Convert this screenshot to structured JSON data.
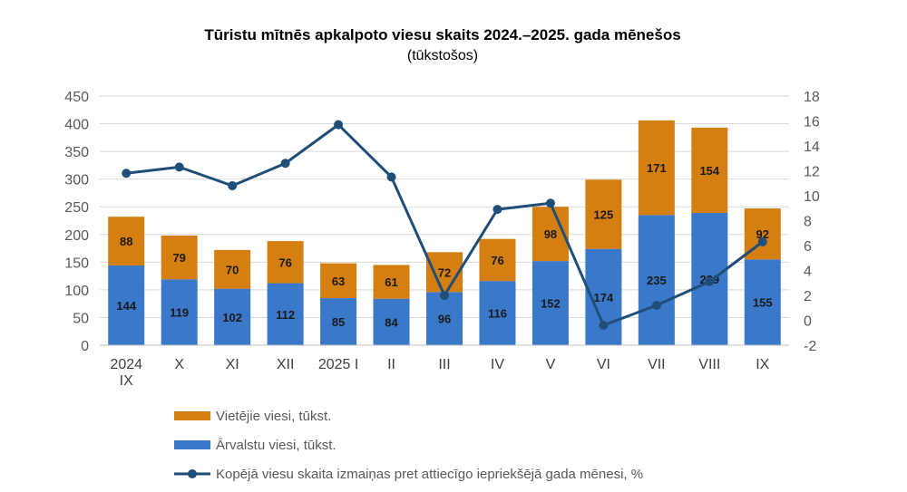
{
  "chart_data": {
    "type": "bar",
    "stacked": true,
    "title": "Tūristu mītnēs apkalpoto viesu skaits 2024.–2025. gada mēnešos",
    "subtitle": "(tūkstošos)",
    "categories": [
      [
        "2024",
        "IX"
      ],
      [
        "X"
      ],
      [
        "XI"
      ],
      [
        "XII"
      ],
      [
        "2025 I"
      ],
      [
        "II"
      ],
      [
        "III"
      ],
      [
        "IV"
      ],
      [
        "V"
      ],
      [
        "VI"
      ],
      [
        "VII"
      ],
      [
        "VIII"
      ],
      [
        "IX"
      ]
    ],
    "series": [
      {
        "name": "Ārvalstu viesi, tūkst.",
        "type": "bar",
        "color": "#3a78c9",
        "values": [
          144,
          119,
          102,
          112,
          85,
          84,
          96,
          116,
          152,
          174,
          235,
          239,
          155
        ],
        "labels": [
          "144",
          "119",
          "102",
          "112",
          "85",
          "84",
          "96",
          "116",
          "152",
          "174",
          "235",
          "239",
          "155"
        ]
      },
      {
        "name": "Vietējie viesi, tūkst.",
        "type": "bar",
        "color": "#d57f12",
        "values": [
          88,
          79,
          70,
          76,
          63,
          61,
          72,
          76,
          98,
          125,
          171,
          154,
          92
        ],
        "labels": [
          "88",
          "79",
          "70",
          "76",
          "63",
          "61",
          "72",
          "76",
          "98",
          "125",
          "171",
          "154",
          "92"
        ]
      },
      {
        "name": "Kopējā viesu skaita izmaiņas pret attiecīgo iepriekšējā gada mēnesi, %",
        "type": "line",
        "axis": "right",
        "color": "#1f4e79",
        "values": [
          11.8,
          12.3,
          10.8,
          12.6,
          15.7,
          11.5,
          2.0,
          8.9,
          9.4,
          -0.4,
          1.2,
          3.1,
          6.3
        ]
      }
    ],
    "y_left": {
      "min": 0,
      "max": 450,
      "step": 50,
      "ticks": [
        "0",
        "50",
        "100",
        "150",
        "200",
        "250",
        "300",
        "350",
        "400",
        "450"
      ]
    },
    "y_right": {
      "min": -2,
      "max": 18,
      "step": 2,
      "ticks": [
        "-2",
        "0",
        "2",
        "4",
        "6",
        "8",
        "10",
        "12",
        "14",
        "16",
        "18"
      ]
    },
    "legend": {
      "position": "bottom-left",
      "items": [
        {
          "label": "Vietējie viesi, tūkst.",
          "kind": "bar",
          "color": "#d57f12"
        },
        {
          "label": "Ārvalstu viesi, tūkst.",
          "kind": "bar",
          "color": "#3a78c9"
        },
        {
          "label": "Kopējā viesu skaita izmaiņas pret attiecīgo iepriekšējā gada mēnesi, %",
          "kind": "line",
          "color": "#1f4e79"
        }
      ]
    }
  }
}
